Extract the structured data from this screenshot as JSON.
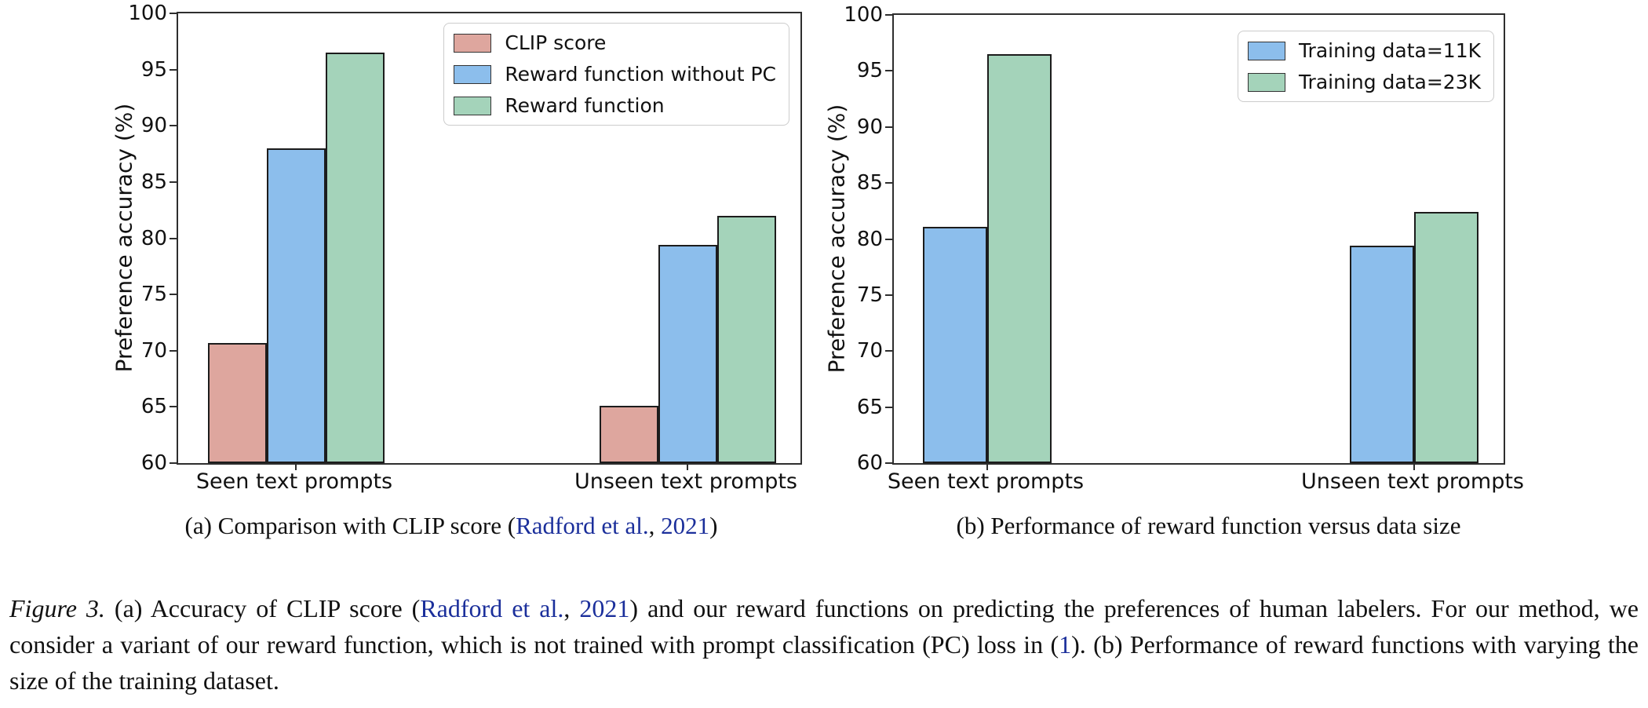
{
  "page": {
    "background": "#ffffff",
    "link_color": "#1b2f9b"
  },
  "chart_data": [
    {
      "type": "bar",
      "panel": "a",
      "categories": [
        "Seen text prompts",
        "Unseen text prompts"
      ],
      "series": [
        {
          "name": "CLIP score",
          "color": "#dea69e",
          "values": [
            70.7,
            65.1
          ]
        },
        {
          "name": "Reward function without PC",
          "color": "#8cbeec",
          "values": [
            88.0,
            79.4
          ]
        },
        {
          "name": "Reward function",
          "color": "#a4d3ba",
          "values": [
            96.5,
            82.0
          ]
        }
      ],
      "ylabel": "Preference accuracy (%)",
      "ylim": [
        60,
        100
      ],
      "yticks": [
        60,
        65,
        70,
        75,
        80,
        85,
        90,
        95,
        100
      ],
      "legend_position": "upper right",
      "grid": false,
      "bar_edge_color": "#1c1c1c"
    },
    {
      "type": "bar",
      "panel": "b",
      "categories": [
        "Seen text prompts",
        "Unseen text prompts"
      ],
      "series": [
        {
          "name": "Training data=11K",
          "color": "#8cbeec",
          "values": [
            81.1,
            79.4
          ]
        },
        {
          "name": "Training data=23K",
          "color": "#a4d3ba",
          "values": [
            96.5,
            82.4
          ]
        }
      ],
      "ylabel": "Preference accuracy (%)",
      "ylim": [
        60,
        100
      ],
      "yticks": [
        60,
        65,
        70,
        75,
        80,
        85,
        90,
        95,
        100
      ],
      "legend_position": "upper right",
      "grid": false,
      "bar_edge_color": "#1c1c1c"
    }
  ],
  "subcaptions": {
    "a": {
      "segments": [
        {
          "t": "(a) Comparison with CLIP score ("
        },
        {
          "t": "Radford et al.",
          "link": true
        },
        {
          "t": ", "
        },
        {
          "t": "2021",
          "link": true
        },
        {
          "t": ")"
        }
      ]
    },
    "b": {
      "segments": [
        {
          "t": "(b) Performance of reward function versus data size"
        }
      ]
    }
  },
  "caption": {
    "segments": [
      {
        "t": "Figure 3.",
        "italic": true
      },
      {
        "t": " (a) Accuracy of CLIP score ("
      },
      {
        "t": "Radford et al.",
        "link": true
      },
      {
        "t": ", "
      },
      {
        "t": "2021",
        "link": true
      },
      {
        "t": ") and our reward functions on predicting the preferences of human labelers. For our method, we consider a variant of our reward function, which is not trained with prompt classification (PC) loss in ("
      },
      {
        "t": "1",
        "link": true
      },
      {
        "t": "). (b) Performance of reward functions with varying the size of the training dataset."
      }
    ]
  }
}
